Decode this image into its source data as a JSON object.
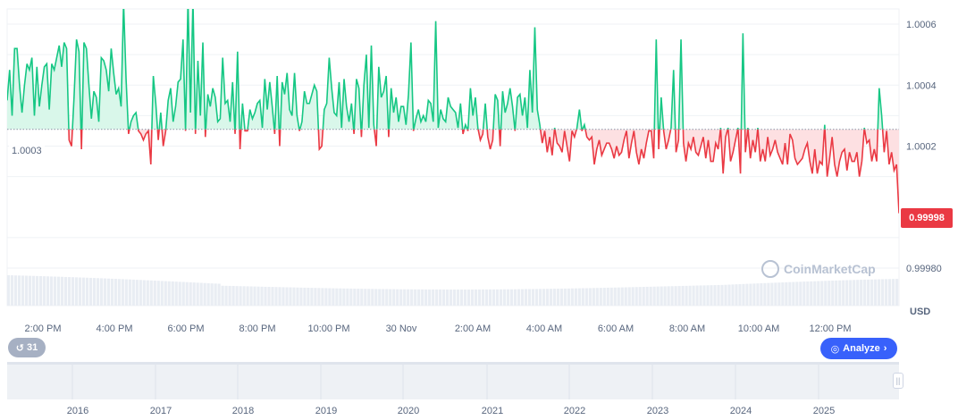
{
  "chart_data": {
    "type": "line",
    "ylim": [
      0.9998,
      1.00065
    ],
    "y_ticks": [
      "1.0006",
      "1.0004",
      "1.0002",
      "0.99980"
    ],
    "y_tick_values": [
      1.0006,
      1.0004,
      1.0002,
      0.9998
    ],
    "currency_label": "USD",
    "open_value": 1.000255,
    "open_label": "1.0003",
    "current_price_label": "0.99998",
    "x_ticks": [
      "2:00 PM",
      "4:00 PM",
      "6:00 PM",
      "8:00 PM",
      "10:00 PM",
      "30 Nov",
      "2:00 AM",
      "4:00 AM",
      "6:00 AM",
      "8:00 AM",
      "10:00 AM",
      "12:00 PM"
    ],
    "navigator_years": [
      "2016",
      "2017",
      "2018",
      "2019",
      "2020",
      "2021",
      "2022",
      "2023",
      "2024",
      "2025"
    ],
    "values": [
      1.00035,
      1.00045,
      1.0003,
      1.00052,
      1.00052,
      1.0004,
      1.00031,
      1.0004,
      1.00047,
      1.00045,
      1.00049,
      1.0003,
      1.00046,
      1.00033,
      1.0004,
      1.00046,
      1.00047,
      1.00032,
      1.00047,
      1.00045,
      1.00049,
      1.00053,
      1.00046,
      1.00054,
      1.00052,
      1.00022,
      1.0002,
      1.00036,
      1.00055,
      1.00051,
      1.00019,
      1.00054,
      1.00052,
      1.0004,
      1.00029,
      1.00038,
      1.00036,
      1.00028,
      1.00049,
      1.00048,
      1.00045,
      1.00038,
      1.00052,
      1.00044,
      1.00037,
      1.00039,
      1.00033,
      1.00067,
      1.00042,
      1.00024,
      1.00028,
      1.0003,
      1.00031,
      1.00025,
      1.00024,
      1.00022,
      1.00024,
      1.00025,
      1.00014,
      1.00043,
      1.00034,
      1.00022,
      1.00031,
      1.0002,
      1.00025,
      1.00035,
      1.00039,
      1.00028,
      1.00033,
      1.00041,
      1.00042,
      1.00055,
      1.00025,
      1.00068,
      1.00031,
      1.00068,
      1.00024,
      1.00048,
      1.0003,
      1.00054,
      1.00023,
      1.00037,
      1.00033,
      1.00039,
      1.00036,
      1.00028,
      1.00029,
      1.00049,
      1.00034,
      1.00035,
      1.00028,
      1.00041,
      1.00024,
      1.00051,
      1.00019,
      1.00034,
      1.00025,
      1.00025,
      1.00032,
      1.00029,
      1.00031,
      1.00034,
      1.00035,
      1.00026,
      1.00042,
      1.00032,
      1.00041,
      1.00033,
      1.00024,
      1.00043,
      1.0002,
      1.00041,
      1.00037,
      1.00044,
      1.00032,
      1.0003,
      1.00044,
      1.0003,
      1.00025,
      1.00028,
      1.00038,
      1.00034,
      1.00034,
      1.00037,
      1.0004,
      1.00038,
      1.00019,
      1.0002,
      1.00032,
      1.00034,
      1.00049,
      1.00039,
      1.00031,
      1.0003,
      1.00041,
      1.00026,
      1.00042,
      1.00033,
      1.00028,
      1.00034,
      1.00024,
      1.00042,
      1.00039,
      1.00023,
      1.0004,
      1.0005,
      1.00026,
      1.00053,
      1.00027,
      1.0002,
      1.00046,
      1.00036,
      1.00038,
      1.00043,
      1.00023,
      1.00039,
      1.00031,
      1.00036,
      1.00028,
      1.00033,
      1.00033,
      1.00027,
      1.00037,
      1.00054,
      1.00025,
      1.00029,
      1.00032,
      1.00028,
      1.0003,
      1.00028,
      1.00035,
      1.00034,
      1.00028,
      1.00061,
      1.00026,
      1.00032,
      1.00029,
      1.00028,
      1.00036,
      1.00033,
      1.00032,
      1.00031,
      1.00026,
      1.00034,
      1.00024,
      1.00027,
      1.00025,
      1.00039,
      1.0003,
      1.00036,
      1.00026,
      1.00022,
      1.00024,
      1.00034,
      1.00023,
      1.00019,
      1.00022,
      1.00037,
      1.00035,
      1.0002,
      1.00038,
      1.00031,
      1.00034,
      1.00039,
      1.00033,
      1.00025,
      1.00036,
      1.00037,
      1.0003,
      1.00036,
      1.00026,
      1.00045,
      1.00031,
      1.00059,
      1.00032,
      1.00027,
      1.00021,
      1.00025,
      1.00018,
      1.00023,
      1.00017,
      1.00026,
      1.00021,
      1.0002,
      1.00018,
      1.00025,
      1.0002,
      1.00015,
      1.00025,
      1.00023,
      1.00026,
      1.00032,
      1.00025,
      1.00027,
      1.00023,
      1.00022,
      1.00023,
      1.00014,
      1.00019,
      1.00022,
      1.00017,
      1.00019,
      1.00021,
      1.00021,
      1.00019,
      1.00016,
      1.0002,
      1.00017,
      1.00018,
      1.00022,
      1.00025,
      1.00016,
      1.00021,
      1.00025,
      1.00018,
      1.00014,
      1.00019,
      1.00016,
      1.00021,
      1.00025,
      1.00025,
      1.00016,
      1.00055,
      1.00019,
      1.00036,
      1.00025,
      1.00019,
      1.00022,
      1.00026,
      1.00045,
      1.00018,
      1.00022,
      1.00055,
      1.00021,
      1.00015,
      1.00021,
      1.00019,
      1.00023,
      1.00018,
      1.00017,
      1.0002,
      1.00023,
      1.00016,
      1.00022,
      1.00015,
      1.00015,
      1.00021,
      1.00019,
      1.00026,
      1.00011,
      1.00023,
      1.00026,
      1.00015,
      1.00018,
      1.00022,
      1.00026,
      1.00011,
      1.00057,
      1.00018,
      1.00026,
      1.00016,
      1.00022,
      1.00018,
      1.00026,
      1.00015,
      1.00019,
      1.00015,
      1.00023,
      1.00017,
      1.00019,
      1.00022,
      1.00018,
      1.00016,
      1.00014,
      1.00021,
      1.00014,
      1.00024,
      1.00022,
      1.00016,
      1.00014,
      1.00015,
      1.00016,
      1.00019,
      1.00021,
      1.00015,
      1.00011,
      1.00019,
      1.00011,
      1.00015,
      1.00014,
      1.00027,
      1.0001,
      1.00016,
      1.00023,
      1.00014,
      1.0001,
      1.00015,
      1.00018,
      1.00019,
      1.00012,
      1.00018,
      1.00015,
      1.00015,
      1.00018,
      1.0001,
      1.00015,
      1.00026,
      1.00021,
      1.00022,
      1.00015,
      1.00019,
      1.00015,
      1.00039,
      1.0003,
      1.00018,
      1.00025,
      1.00014,
      1.00018,
      1.00012,
      1.00014,
      0.99998
    ]
  },
  "controls": {
    "history_count": "31",
    "analyze_label": "Analyze",
    "watermark_text": "CoinMarketCap"
  },
  "colors": {
    "up": "#16c784",
    "down": "#ea3943",
    "up_fill": "#d9f7ea",
    "down_fill": "#fde0e2",
    "grid": "#eff2f5",
    "axis_text": "#58667e"
  }
}
